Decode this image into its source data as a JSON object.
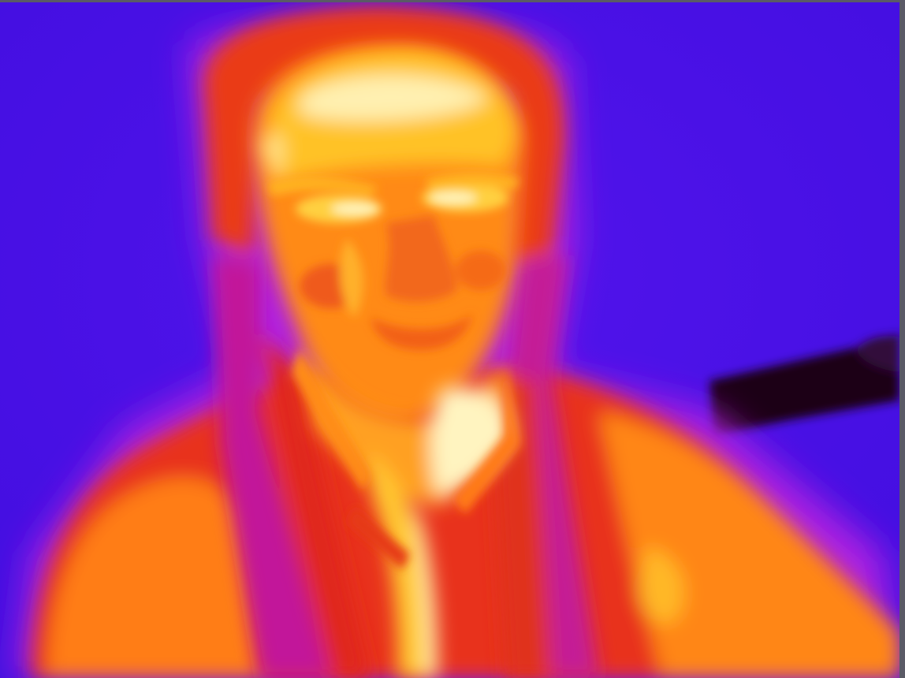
{
  "image": {
    "kind": "thermal-camera-image",
    "palette": "iron",
    "colors": {
      "background_cold": "#4a10e8",
      "halo": "#b020e0",
      "magenta": "#d020b0",
      "warm_red": "#f03c18",
      "warm_orange": "#ff8a10",
      "hot_yellow": "#ffd030",
      "hottest_white": "#fff6c8",
      "cold_object": "#1a0018",
      "border": "#5a5a66"
    }
  }
}
